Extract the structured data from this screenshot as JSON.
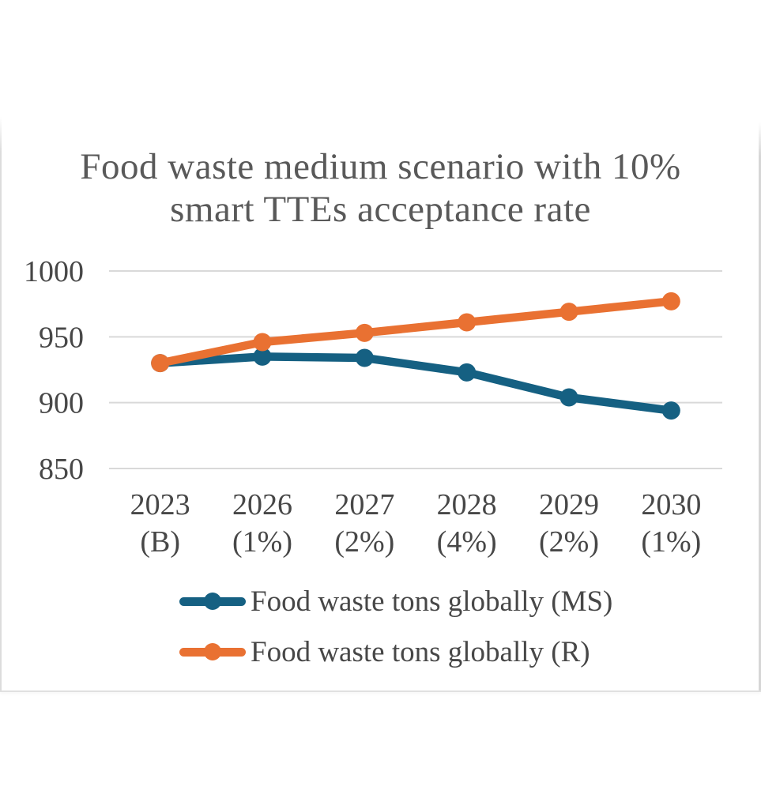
{
  "chart_data": {
    "type": "line",
    "title": "Food waste medium scenario with 10% smart TTEs acceptance rate",
    "title_lines": [
      "Food waste medium scenario with 10%",
      "smart TTEs acceptance rate"
    ],
    "categories": [
      "2023",
      "2026",
      "2027",
      "2028",
      "2029",
      "2030"
    ],
    "category_sublabels": [
      "(B)",
      "(1%)",
      "(2%)",
      "(4%)",
      "(2%)",
      "(1%)"
    ],
    "series": [
      {
        "name": "Food waste tons globally (MS)",
        "color": "#156082",
        "values": [
          930,
          935,
          934,
          923,
          904,
          894
        ]
      },
      {
        "name": "Food waste tons globally (R)",
        "color": "#E97132",
        "values": [
          930,
          946,
          953,
          961,
          969,
          977
        ]
      }
    ],
    "xlabel": "",
    "ylabel": "",
    "ylim": [
      850,
      1000
    ],
    "yticks": [
      850,
      900,
      950,
      1000
    ],
    "grid": true,
    "legend_position": "bottom",
    "colors": {
      "grid": "#D9D9D9",
      "tick_text": "#474747",
      "title_text": "#595959",
      "legend_text": "#474747",
      "page_edge": "#DCDCDC",
      "background": "#FFFFFF"
    }
  }
}
